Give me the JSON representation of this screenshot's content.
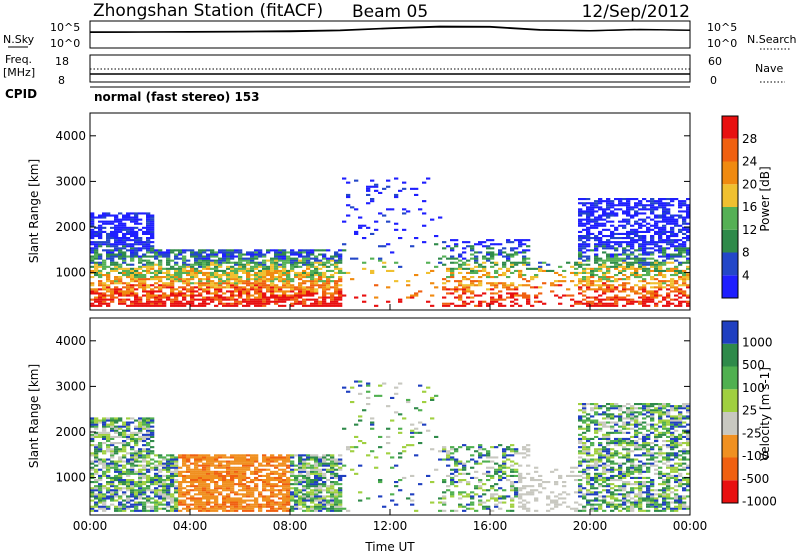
{
  "header": {
    "station": "Zhongshan Station (fitACF)",
    "beam": "Beam 05",
    "date": "12/Sep/2012"
  },
  "strip": {
    "nsky_label": "N.Sky",
    "nsearch_label": "N.Search",
    "freq_label_1": "Freq.",
    "freq_label_2": "[MHz]",
    "nave_label": "Nave",
    "cpid_label": "CPID",
    "cpid_value": "normal (fast stereo) 153",
    "left_top": "10^5",
    "left_bottom": "10^0",
    "right_top": "10^5",
    "right_bottom": "10^0",
    "freq_top": "18",
    "freq_bottom": "8",
    "nave_top": "60",
    "nave_bottom": "0"
  },
  "colors": {
    "power": [
      "#1f1fff",
      "#2347c8",
      "#2f8a4a",
      "#55b055",
      "#f0c030",
      "#f08a10",
      "#f06010",
      "#e81010"
    ],
    "velocity": [
      "#e81010",
      "#f06010",
      "#f09020",
      "#c8c8c0",
      "#a0d040",
      "#50b050",
      "#2f8a4a",
      "#1f3fc0"
    ]
  },
  "chart_data": [
    {
      "type": "line",
      "title": "Zhongshan Station (fitACF)  Beam 05  12/Sep/2012",
      "xlabel": "Time UT",
      "series": [
        {
          "name": "N.Sky",
          "x": [
            "00:00",
            "02:00",
            "04:00",
            "06:00",
            "08:00",
            "10:00",
            "12:00",
            "14:00",
            "16:00",
            "18:00",
            "20:00",
            "22:00",
            "24:00"
          ],
          "values": [
            1500,
            1600,
            1800,
            2000,
            2500,
            4000,
            12000,
            30000,
            25000,
            5000,
            3000,
            6000,
            4000
          ]
        },
        {
          "name": "N.Search",
          "x": [
            "00:00",
            "02:00",
            "04:00",
            "06:00",
            "08:00",
            "10:00",
            "12:00",
            "14:00",
            "16:00",
            "18:00",
            "20:00",
            "22:00",
            "24:00"
          ],
          "values": [
            1200,
            1300,
            1400,
            1500,
            1800,
            3000,
            9000,
            20000,
            18000,
            4000,
            2500,
            5000,
            3500
          ]
        }
      ],
      "ylim": [
        1,
        100000
      ],
      "yscale": "log"
    },
    {
      "type": "line",
      "series": [
        {
          "name": "Freq.",
          "unit": "MHz",
          "x": [
            "00:00",
            "24:00"
          ],
          "values": [
            12,
            12
          ]
        },
        {
          "name": "Nave",
          "x": [
            "00:00",
            "24:00"
          ],
          "values": [
            22,
            22
          ]
        }
      ]
    },
    {
      "type": "heatmap",
      "quantity": "Power",
      "colorbar_label": "Power [dB]",
      "colorbar_ticks": [
        "4",
        "8",
        "12",
        "16",
        "20",
        "24",
        "28"
      ],
      "ylabel": "Slant Range [km]",
      "ylim": [
        180,
        4500
      ],
      "yticks": [
        "1000",
        "2000",
        "3000",
        "4000"
      ],
      "xlim": [
        "00:00",
        "24:00"
      ],
      "xticks": [
        "00:00",
        "04:00",
        "08:00",
        "12:00",
        "16:00",
        "20:00",
        "00:00"
      ]
    },
    {
      "type": "heatmap",
      "quantity": "Velocity",
      "colorbar_label": "Velocity [m s-1]",
      "colorbar_ticks": [
        "1000",
        "500",
        "100",
        "25",
        "-25",
        "-100",
        "-500",
        "-1000"
      ],
      "ylabel": "Slant Range [km]",
      "ylim": [
        180,
        4500
      ],
      "yticks": [
        "1000",
        "2000",
        "3000",
        "4000"
      ],
      "xlabel": "Time UT",
      "xlim": [
        "00:00",
        "24:00"
      ],
      "xticks": [
        "00:00",
        "04:00",
        "08:00",
        "12:00",
        "16:00",
        "20:00",
        "00:00"
      ]
    }
  ]
}
